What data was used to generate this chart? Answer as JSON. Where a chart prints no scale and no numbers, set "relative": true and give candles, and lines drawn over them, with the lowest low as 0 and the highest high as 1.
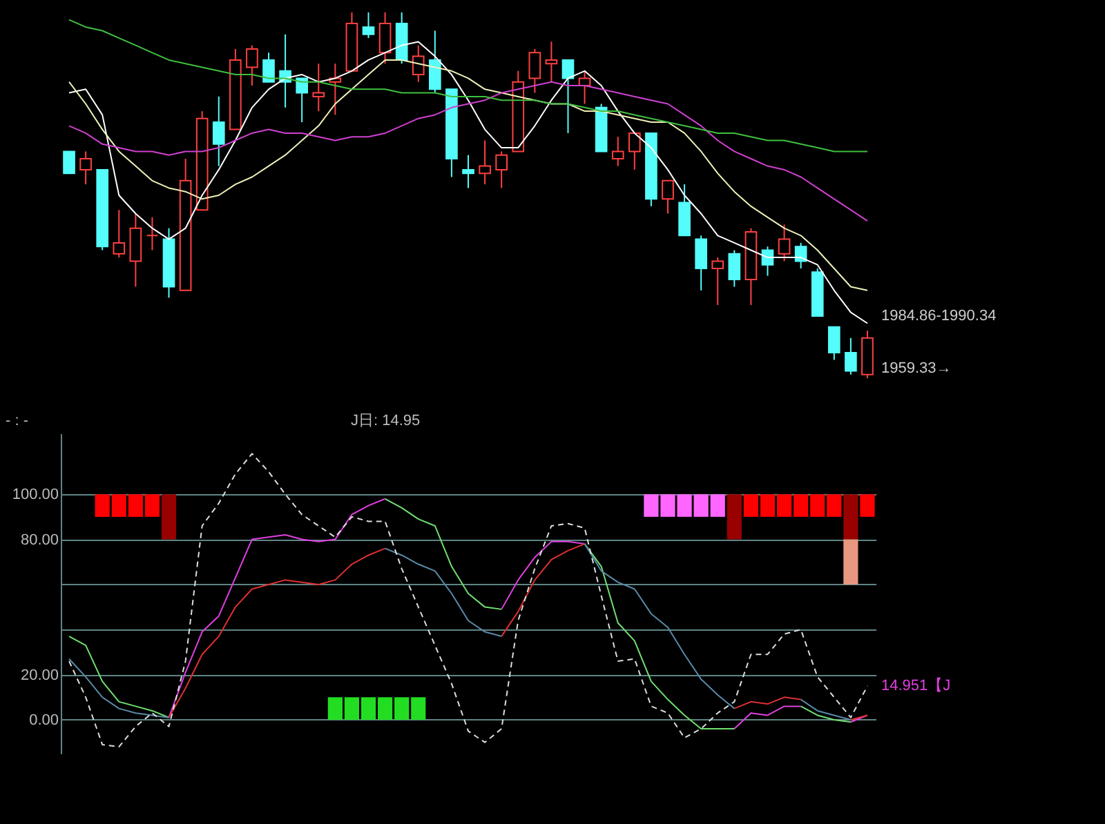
{
  "chart_data": [
    {
      "type": "candlestick",
      "relative": true,
      "tick_labels": false,
      "categories": [
        null,
        null,
        null,
        null,
        null,
        null,
        null,
        null,
        null,
        null,
        null,
        null,
        null,
        null,
        null,
        null,
        null,
        null,
        null,
        null,
        null,
        null,
        null,
        null,
        null,
        null,
        null,
        null,
        null,
        null,
        null,
        null,
        null,
        null,
        null,
        null,
        null,
        null,
        null,
        null,
        null,
        null,
        null,
        null,
        null,
        null,
        null,
        null,
        null
      ],
      "ohlc": [
        [
          0.62,
          0.62,
          0.56,
          0.56
        ],
        [
          0.57,
          0.62,
          0.53,
          0.6
        ],
        [
          0.57,
          0.57,
          0.35,
          0.36
        ],
        [
          0.34,
          0.46,
          0.33,
          0.37
        ],
        [
          0.32,
          0.45,
          0.25,
          0.41
        ],
        [
          0.39,
          0.44,
          0.35,
          0.39
        ],
        [
          0.38,
          0.41,
          0.22,
          0.25
        ],
        [
          0.24,
          0.6,
          0.24,
          0.54
        ],
        [
          0.46,
          0.73,
          0.46,
          0.71
        ],
        [
          0.7,
          0.77,
          0.58,
          0.64
        ],
        [
          0.68,
          0.9,
          0.68,
          0.87
        ],
        [
          0.85,
          0.91,
          0.8,
          0.9
        ],
        [
          0.87,
          0.89,
          0.81,
          0.81
        ],
        [
          0.84,
          0.94,
          0.74,
          0.81
        ],
        [
          0.82,
          0.82,
          0.7,
          0.78
        ],
        [
          0.77,
          0.86,
          0.73,
          0.78
        ],
        [
          0.81,
          0.86,
          0.72,
          0.82
        ],
        [
          0.84,
          1,
          0.84,
          0.97
        ],
        [
          0.96,
          1,
          0.93,
          0.94
        ],
        [
          0.89,
          1,
          0.86,
          0.97
        ],
        [
          0.97,
          1,
          0.86,
          0.87
        ],
        [
          0.83,
          0.91,
          0.81,
          0.88
        ],
        [
          0.87,
          0.95,
          0.78,
          0.79
        ],
        [
          0.79,
          0.79,
          0.55,
          0.6
        ],
        [
          0.57,
          0.61,
          0.52,
          0.56
        ],
        [
          0.56,
          0.65,
          0.53,
          0.58
        ],
        [
          0.57,
          0.62,
          0.52,
          0.61
        ],
        [
          0.62,
          0.84,
          0.62,
          0.81
        ],
        [
          0.82,
          0.9,
          0.78,
          0.89
        ],
        [
          0.86,
          0.92,
          0.81,
          0.87
        ],
        [
          0.87,
          0.87,
          0.67,
          0.82
        ],
        [
          0.8,
          0.84,
          0.75,
          0.82
        ],
        [
          0.74,
          0.75,
          0.62,
          0.62
        ],
        [
          0.6,
          0.66,
          0.58,
          0.62
        ],
        [
          0.62,
          0.67,
          0.57,
          0.67
        ],
        [
          0.67,
          0.67,
          0.47,
          0.49
        ],
        [
          0.49,
          0.54,
          0.45,
          0.54
        ],
        [
          0.48,
          0.53,
          0.39,
          0.39
        ],
        [
          0.38,
          0.39,
          0.24,
          0.3
        ],
        [
          0.3,
          0.33,
          0.2,
          0.32
        ],
        [
          0.34,
          0.35,
          0.25,
          0.27
        ],
        [
          0.27,
          0.41,
          0.2,
          0.4
        ],
        [
          0.35,
          0.36,
          0.28,
          0.31
        ],
        [
          0.34,
          0.42,
          0.32,
          0.38
        ],
        [
          0.36,
          0.37,
          0.3,
          0.32
        ],
        [
          0.29,
          0.3,
          0.17,
          0.17
        ],
        [
          0.14,
          0.14,
          0.05,
          0.07
        ],
        [
          0.07,
          0.11,
          0.01,
          0.02
        ],
        [
          0.01,
          0.13,
          0,
          0.11
        ]
      ],
      "colors": [
        "#54fcfc",
        "#ff4040",
        "#54fcfc",
        "#ff4040",
        "#ff4040",
        "#ff4040",
        "#54fcfc",
        "#ff4040",
        "#ff4040",
        "#54fcfc",
        "#ff4040",
        "#ff4040",
        "#54fcfc",
        "#54fcfc",
        "#54fcfc",
        "#ff4040",
        "#ff4040",
        "#ff4040",
        "#54fcfc",
        "#ff4040",
        "#54fcfc",
        "#ff4040",
        "#54fcfc",
        "#54fcfc",
        "#54fcfc",
        "#ff4040",
        "#ff4040",
        "#ff4040",
        "#ff4040",
        "#ff4040",
        "#54fcfc",
        "#ff4040",
        "#54fcfc",
        "#ff4040",
        "#ff4040",
        "#54fcfc",
        "#ff4040",
        "#54fcfc",
        "#54fcfc",
        "#ff4040",
        "#54fcfc",
        "#ff4040",
        "#54fcfc",
        "#ff4040",
        "#54fcfc",
        "#54fcfc",
        "#54fcfc",
        "#54fcfc",
        "#ff4040"
      ],
      "series": [
        {
          "type": "line",
          "color": "#ffffff",
          "values": [
            0.78,
            0.79,
            0.72,
            0.5,
            0.45,
            0.41,
            0.38,
            0.41,
            0.5,
            0.57,
            0.65,
            0.74,
            0.79,
            0.82,
            0.83,
            0.81,
            0.82,
            0.84,
            0.87,
            0.89,
            0.91,
            0.92,
            0.88,
            0.83,
            0.76,
            0.68,
            0.63,
            0.63,
            0.69,
            0.76,
            0.82,
            0.84,
            0.8,
            0.73,
            0.67,
            0.63,
            0.57,
            0.5,
            0.45,
            0.39,
            0.37,
            0.35,
            0.33,
            0.33,
            0.33,
            0.31,
            0.24,
            0.18,
            0.15
          ]
        },
        {
          "type": "line",
          "color": "#f0f0b8",
          "values": [
            0.81,
            0.75,
            0.68,
            0.62,
            0.58,
            0.54,
            0.52,
            0.51,
            0.49,
            0.5,
            0.53,
            0.55,
            0.58,
            0.61,
            0.65,
            0.69,
            0.75,
            0.79,
            0.83,
            0.87,
            0.87,
            0.86,
            0.85,
            0.84,
            0.82,
            0.79,
            0.78,
            0.77,
            0.76,
            0.75,
            0.75,
            0.73,
            0.73,
            0.72,
            0.71,
            0.7,
            0.7,
            0.67,
            0.62,
            0.56,
            0.51,
            0.47,
            0.44,
            0.41,
            0.39,
            0.35,
            0.3,
            0.25,
            0.24
          ]
        },
        {
          "type": "line",
          "color": "#d040d0",
          "values": [
            0.69,
            0.67,
            0.64,
            0.63,
            0.62,
            0.62,
            0.61,
            0.62,
            0.62,
            0.63,
            0.65,
            0.67,
            0.68,
            0.67,
            0.67,
            0.66,
            0.65,
            0.66,
            0.66,
            0.67,
            0.69,
            0.71,
            0.72,
            0.74,
            0.75,
            0.76,
            0.78,
            0.79,
            0.8,
            0.81,
            0.8,
            0.8,
            0.79,
            0.78,
            0.77,
            0.76,
            0.75,
            0.72,
            0.69,
            0.65,
            0.62,
            0.6,
            0.58,
            0.57,
            0.55,
            0.52,
            0.49,
            0.46,
            0.43
          ]
        },
        {
          "type": "line",
          "color": "#40c040",
          "values": [
            0.98,
            0.96,
            0.95,
            0.93,
            0.91,
            0.89,
            0.87,
            0.86,
            0.85,
            0.84,
            0.83,
            0.83,
            0.82,
            0.82,
            0.81,
            0.81,
            0.8,
            0.79,
            0.79,
            0.79,
            0.78,
            0.78,
            0.78,
            0.77,
            0.77,
            0.77,
            0.76,
            0.76,
            0.76,
            0.75,
            0.75,
            0.74,
            0.73,
            0.73,
            0.72,
            0.71,
            0.7,
            0.69,
            0.68,
            0.67,
            0.67,
            0.66,
            0.65,
            0.65,
            0.64,
            0.63,
            0.62,
            0.62,
            0.62
          ]
        }
      ],
      "annotations": [
        "1984.86-1990.34",
        "1959.33→"
      ]
    },
    {
      "type": "line",
      "tick_labels": "y",
      "grid": true,
      "ylim": [
        -15,
        127
      ],
      "yticks": [
        {
          "value": 0,
          "label": "0.00"
        },
        {
          "value": 20,
          "label": "20.00"
        },
        {
          "value": 40,
          "label": null
        },
        {
          "value": 60,
          "label": null
        },
        {
          "value": 80,
          "label": "80.00"
        },
        {
          "value": 100,
          "label": "100.00"
        }
      ],
      "categories": [
        null,
        null,
        null,
        null,
        null,
        null,
        null,
        null,
        null,
        null,
        null,
        null,
        null,
        null,
        null,
        null,
        null,
        null,
        null,
        null,
        null,
        null,
        null,
        null,
        null,
        null,
        null,
        null,
        null,
        null,
        null,
        null,
        null,
        null,
        null,
        null,
        null,
        null,
        null,
        null,
        null,
        null,
        null,
        null,
        null,
        null,
        null,
        null,
        null
      ],
      "series": [
        {
          "type": "bar",
          "values": [
            null,
            null,
            10,
            10,
            10,
            10,
            20,
            null,
            null,
            null,
            null,
            null,
            null,
            null,
            null,
            null,
            10,
            10,
            10,
            10,
            10,
            10,
            null,
            null,
            null,
            null,
            null,
            null,
            null,
            null,
            null,
            null,
            null,
            null,
            null,
            10,
            10,
            10,
            10,
            10,
            20,
            10,
            10,
            10,
            10,
            10,
            10,
            20,
            10
          ],
          "base": [
            null,
            null,
            90,
            90,
            90,
            90,
            80,
            null,
            null,
            null,
            null,
            null,
            null,
            null,
            null,
            null,
            0,
            0,
            0,
            0,
            0,
            0,
            null,
            null,
            null,
            null,
            null,
            null,
            null,
            null,
            null,
            null,
            null,
            null,
            null,
            90,
            90,
            90,
            90,
            90,
            80,
            90,
            90,
            90,
            90,
            90,
            90,
            80,
            90
          ],
          "colors": [
            null,
            null,
            "#ff0000",
            "#ff0000",
            "#ff0000",
            "#ff0000",
            "#990000",
            null,
            null,
            null,
            null,
            null,
            null,
            null,
            null,
            null,
            "#22dd22",
            "#22dd22",
            "#22dd22",
            "#22dd22",
            "#22dd22",
            "#22dd22",
            null,
            null,
            null,
            null,
            null,
            null,
            null,
            null,
            null,
            null,
            null,
            null,
            null,
            "#ff66ff",
            "#ff66ff",
            "#ff66ff",
            "#ff66ff",
            "#ff66ff",
            "#990000",
            "#ff0000",
            "#ff0000",
            "#ff0000",
            "#ff0000",
            "#ff0000",
            "#ff0000",
            "#990000",
            "#ff0000"
          ]
        },
        {
          "type": "bar",
          "color": "#e89880",
          "values": [
            null,
            null,
            null,
            null,
            null,
            null,
            null,
            null,
            null,
            null,
            null,
            null,
            null,
            null,
            null,
            null,
            null,
            null,
            null,
            null,
            null,
            null,
            null,
            null,
            null,
            null,
            null,
            null,
            null,
            null,
            null,
            null,
            null,
            null,
            null,
            null,
            null,
            null,
            null,
            null,
            null,
            null,
            null,
            null,
            null,
            null,
            null,
            20,
            null
          ],
          "base": [
            null,
            null,
            null,
            null,
            null,
            null,
            null,
            null,
            null,
            null,
            null,
            null,
            null,
            null,
            null,
            null,
            null,
            null,
            null,
            null,
            null,
            null,
            null,
            null,
            null,
            null,
            null,
            null,
            null,
            null,
            null,
            null,
            null,
            null,
            null,
            null,
            null,
            null,
            null,
            null,
            null,
            null,
            null,
            null,
            null,
            null,
            null,
            60,
            null
          ]
        },
        {
          "type": "line",
          "color": "#e040e0",
          "values": [
            null,
            null,
            null,
            null,
            null,
            null,
            1,
            21,
            39,
            46,
            63,
            80,
            81,
            82,
            80,
            79,
            80,
            91,
            95,
            98,
            null,
            null,
            null,
            null,
            null,
            null,
            49,
            62,
            72,
            79,
            79,
            78,
            null,
            null,
            null,
            null,
            null,
            null,
            null,
            null,
            -4,
            3,
            2,
            6,
            6,
            null,
            null,
            -1,
            2
          ]
        },
        {
          "type": "line",
          "color": "#70e070",
          "values": [
            37,
            33,
            17,
            8,
            6,
            4,
            1,
            null,
            null,
            null,
            null,
            null,
            null,
            null,
            null,
            null,
            null,
            null,
            null,
            98,
            94,
            89,
            86,
            68,
            56,
            50,
            49,
            null,
            null,
            null,
            null,
            78,
            68,
            43,
            35,
            17,
            9,
            2,
            -4,
            -4,
            -4,
            null,
            null,
            null,
            6,
            2,
            0,
            -1,
            null
          ]
        },
        {
          "type": "line",
          "color": "#e03030",
          "values": [
            null,
            null,
            null,
            null,
            null,
            null,
            1,
            14,
            29,
            37,
            50,
            58,
            60,
            62,
            61,
            60,
            62,
            69,
            73,
            76,
            null,
            null,
            null,
            null,
            null,
            null,
            37,
            48,
            62,
            71,
            75,
            78,
            null,
            null,
            null,
            null,
            null,
            null,
            null,
            null,
            5,
            8,
            7,
            10,
            9,
            null,
            null,
            0,
            2
          ]
        },
        {
          "type": "line",
          "color": "#5a8aa8",
          "values": [
            27,
            19,
            10,
            5,
            3,
            2,
            1,
            null,
            null,
            null,
            null,
            null,
            null,
            null,
            null,
            null,
            null,
            null,
            null,
            76,
            73,
            69,
            66,
            56,
            44,
            39,
            37,
            null,
            null,
            null,
            null,
            78,
            66,
            61,
            58,
            47,
            41,
            29,
            18,
            11,
            5,
            null,
            null,
            null,
            9,
            4,
            2,
            0,
            null
          ]
        },
        {
          "type": "line",
          "color": "#dddddd",
          "line_style": "dashed",
          "values": [
            26,
            10,
            -11,
            -12,
            -3,
            3,
            -3,
            26,
            86,
            96,
            109,
            118,
            110,
            100,
            91,
            86,
            81,
            90,
            88,
            88,
            67,
            50,
            33,
            16,
            -5,
            -10,
            -4,
            44,
            67,
            86,
            87,
            85,
            55,
            26,
            27,
            6,
            3,
            -8,
            -4,
            3,
            8,
            29,
            29,
            38,
            40,
            19,
            10,
            1,
            15
          ]
        }
      ],
      "annotations": [
        "- : -",
        "J日: 14.95",
        "14.951【J"
      ]
    }
  ]
}
